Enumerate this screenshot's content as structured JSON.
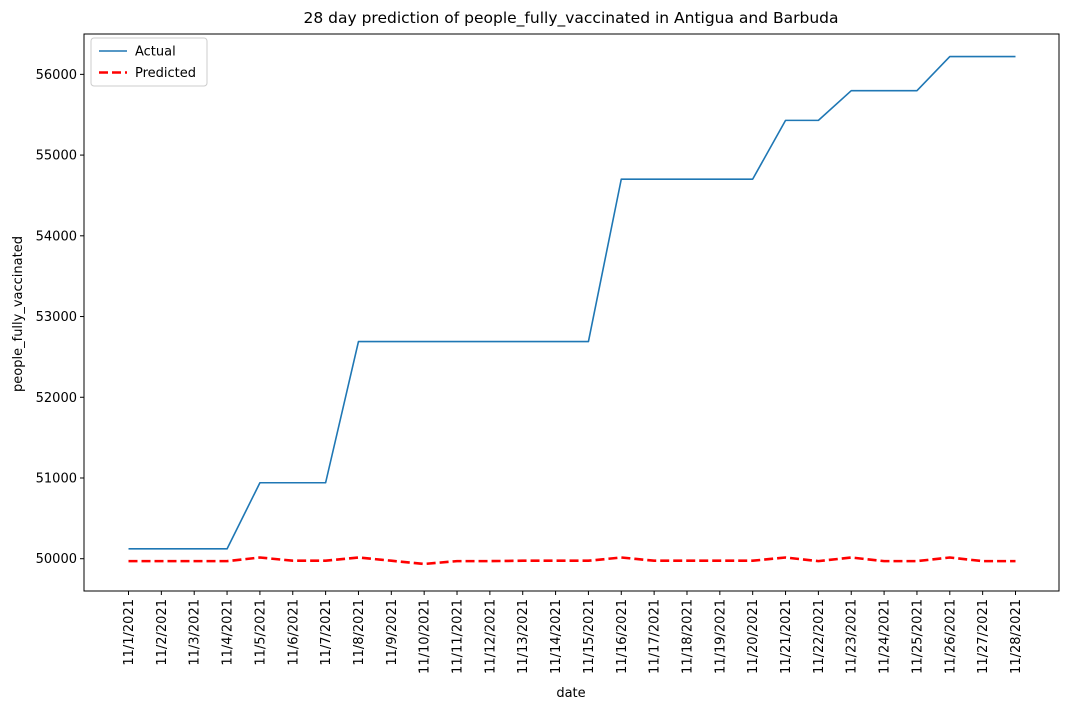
{
  "chart_data": {
    "type": "line",
    "title": "28 day prediction of people_fully_vaccinated in Antigua and Barbuda",
    "xlabel": "date",
    "ylabel": "people_fully_vaccinated",
    "x": [
      "11/1/2021",
      "11/2/2021",
      "11/3/2021",
      "11/4/2021",
      "11/5/2021",
      "11/6/2021",
      "11/7/2021",
      "11/8/2021",
      "11/9/2021",
      "11/10/2021",
      "11/11/2021",
      "11/12/2021",
      "11/13/2021",
      "11/14/2021",
      "11/15/2021",
      "11/16/2021",
      "11/17/2021",
      "11/18/2021",
      "11/19/2021",
      "11/20/2021",
      "11/21/2021",
      "11/22/2021",
      "11/23/2021",
      "11/24/2021",
      "11/25/2021",
      "11/26/2021",
      "11/27/2021",
      "11/28/2021"
    ],
    "ylim": [
      49600,
      56500
    ],
    "yticks": [
      50000,
      51000,
      52000,
      53000,
      54000,
      55000,
      56000
    ],
    "grid": false,
    "legend_position": "top-left",
    "series": [
      {
        "name": "Actual",
        "color": "#1f77b4",
        "style": "solid",
        "values": [
          50122,
          50122,
          50122,
          50122,
          50941,
          50941,
          50941,
          52690,
          52690,
          52690,
          52690,
          52690,
          52690,
          52690,
          52690,
          54702,
          54702,
          54702,
          54702,
          54702,
          55430,
          55430,
          55798,
          55798,
          55798,
          56220,
          56220,
          56220
        ]
      },
      {
        "name": "Predicted",
        "color": "#ff0000",
        "style": "dashed",
        "values": [
          49970,
          49970,
          49970,
          49970,
          50015,
          49975,
          49975,
          50015,
          49975,
          49935,
          49970,
          49970,
          49975,
          49975,
          49975,
          50015,
          49975,
          49975,
          49975,
          49975,
          50015,
          49970,
          50015,
          49970,
          49970,
          50015,
          49970,
          49970
        ]
      }
    ]
  }
}
